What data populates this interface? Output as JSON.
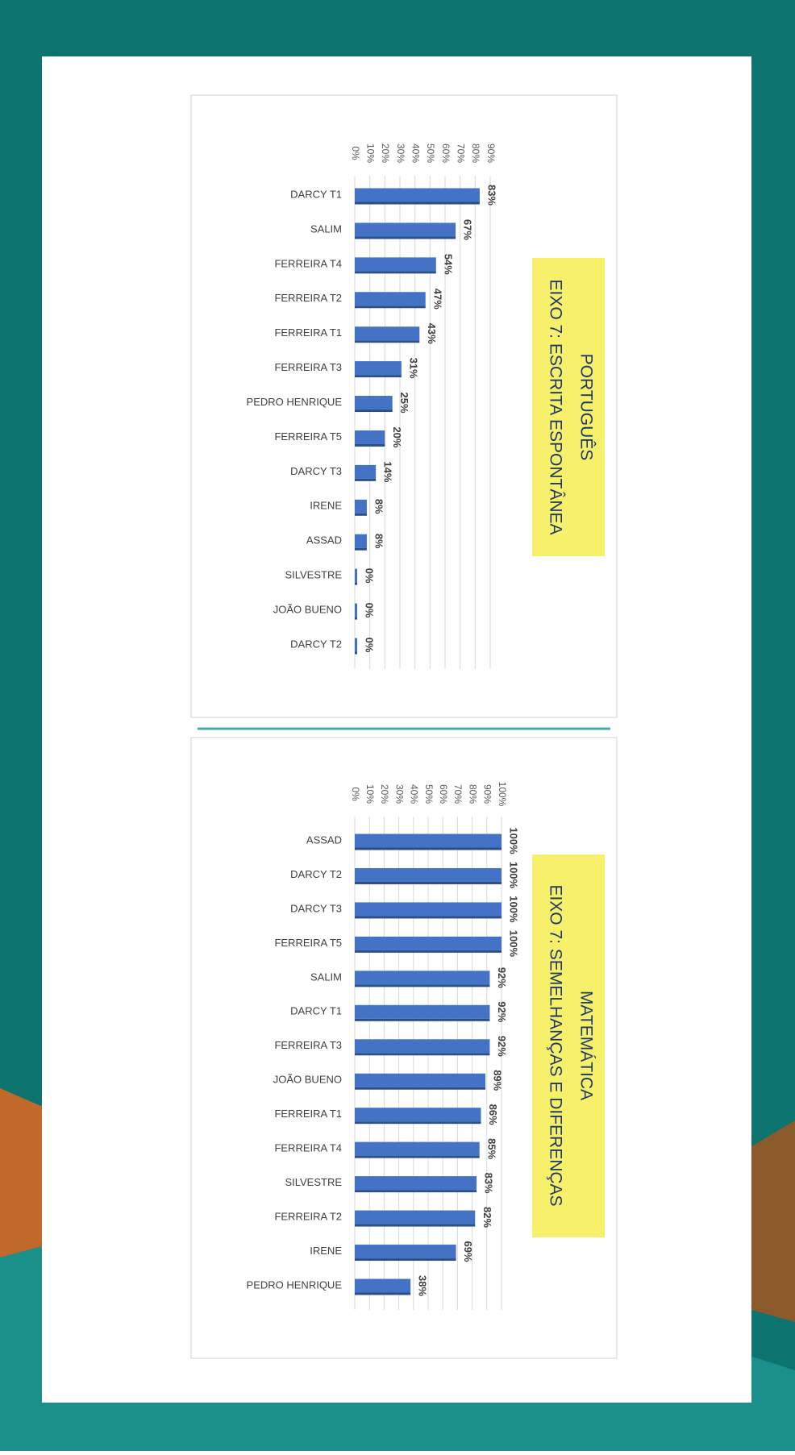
{
  "chart_data": [
    {
      "type": "bar",
      "title": "PORTUGUÊS",
      "subtitle": "EIXO 7: ESCRITA ESPONTÂNEA",
      "categories": [
        "DARCY T1",
        "SALIM",
        "FERREIRA T4",
        "FERREIRA T2",
        "FERREIRA T1",
        "FERREIRA T3",
        "PEDRO HENRIQUE",
        "FERREIRA T5",
        "DARCY T3",
        "IRENE",
        "ASSAD",
        "SILVESTRE",
        "JOÃO BUENO",
        "DARCY T2"
      ],
      "values": [
        83,
        67,
        54,
        47,
        43,
        31,
        25,
        20,
        14,
        8,
        8,
        0,
        0,
        0
      ],
      "value_labels": [
        "83%",
        "67%",
        "54%",
        "47%",
        "43%",
        "31%",
        "25%",
        "20%",
        "14%",
        "8%",
        "8%",
        "0%",
        "0%",
        "0%"
      ],
      "color": "#4472c4",
      "xlim": [
        0,
        90
      ],
      "xticks": [
        {
          "value": 0,
          "label": "0%"
        },
        {
          "value": 10,
          "label": "10%"
        },
        {
          "value": 20,
          "label": "20%"
        },
        {
          "value": 30,
          "label": "30%"
        },
        {
          "value": 40,
          "label": "40%"
        },
        {
          "value": 50,
          "label": "50%"
        },
        {
          "value": 60,
          "label": "60%"
        },
        {
          "value": 70,
          "label": "70%"
        },
        {
          "value": 80,
          "label": "80%"
        },
        {
          "value": 90,
          "label": "90%"
        }
      ],
      "grid": true
    },
    {
      "type": "bar",
      "title": "MATEMÁTICA",
      "subtitle": "EIXO 7: SEMELHANÇAS E DIFERENÇAS",
      "categories": [
        "ASSAD",
        "DARCY T2",
        "DARCY T3",
        "FERREIRA T5",
        "SALIM",
        "DARCY T1",
        "FERREIRA T3",
        "JOÃO BUENO",
        "FERREIRA T1",
        "FERREIRA T4",
        "SILVESTRE",
        "FERREIRA T2",
        "IRENE",
        "PEDRO HENRIQUE"
      ],
      "values": [
        100,
        100,
        100,
        100,
        92,
        92,
        92,
        89,
        86,
        85,
        83,
        82,
        69,
        38
      ],
      "value_labels": [
        "100%",
        "100%",
        "100%",
        "100%",
        "92%",
        "92%",
        "92%",
        "89%",
        "86%",
        "85%",
        "83%",
        "82%",
        "69%",
        "38%"
      ],
      "color": "#4472c4",
      "xlim": [
        0,
        100
      ],
      "xticks": [
        {
          "value": 0,
          "label": "0%"
        },
        {
          "value": 10,
          "label": "10%"
        },
        {
          "value": 20,
          "label": "20%"
        },
        {
          "value": 30,
          "label": "30%"
        },
        {
          "value": 40,
          "label": "40%"
        },
        {
          "value": 50,
          "label": "50%"
        },
        {
          "value": 60,
          "label": "60%"
        },
        {
          "value": 70,
          "label": "70%"
        },
        {
          "value": 80,
          "label": "80%"
        },
        {
          "value": 90,
          "label": "90%"
        },
        {
          "value": 100,
          "label": "100%"
        }
      ],
      "grid": true
    }
  ]
}
